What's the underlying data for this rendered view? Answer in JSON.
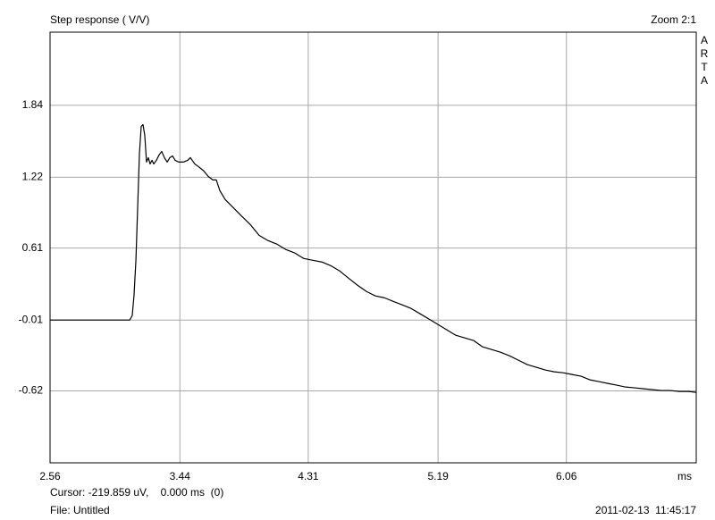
{
  "chart_data": {
    "type": "line",
    "title": "Step response ( V/V)",
    "zoom_label": "Zoom 2:1",
    "side_label": "ARTA",
    "x_label": "ms",
    "color": "#000000",
    "grid": true,
    "xlim": [
      2.56,
      6.94
    ],
    "ylim": [
      -1.24,
      2.47
    ],
    "xticks": [
      2.56,
      3.44,
      4.31,
      5.19,
      6.06
    ],
    "yticks": [
      1.84,
      1.22,
      0.61,
      -0.01,
      -0.62
    ],
    "x": [
      2.56,
      3.1,
      3.117,
      3.129,
      3.142,
      3.154,
      3.166,
      3.178,
      3.19,
      3.202,
      3.214,
      3.226,
      3.238,
      3.251,
      3.263,
      3.281,
      3.299,
      3.317,
      3.335,
      3.354,
      3.372,
      3.39,
      3.408,
      3.432,
      3.463,
      3.493,
      3.511,
      3.541,
      3.566,
      3.602,
      3.632,
      3.663,
      3.687,
      3.711,
      3.747,
      3.796,
      3.856,
      3.917,
      3.977,
      4.038,
      4.099,
      4.159,
      4.22,
      4.28,
      4.341,
      4.402,
      4.462,
      4.523,
      4.583,
      4.644,
      4.705,
      4.765,
      4.826,
      4.886,
      4.947,
      5.007,
      5.068,
      5.129,
      5.189,
      5.25,
      5.31,
      5.371,
      5.432,
      5.492,
      5.553,
      5.613,
      5.674,
      5.734,
      5.795,
      5.856,
      5.916,
      5.977,
      6.037,
      6.098,
      6.159,
      6.219,
      6.28,
      6.34,
      6.401,
      6.461,
      6.522,
      6.583,
      6.643,
      6.704,
      6.764,
      6.825,
      6.886,
      6.94
    ],
    "values": [
      -0.01,
      -0.01,
      0.028,
      0.198,
      0.505,
      0.966,
      1.428,
      1.658,
      1.674,
      1.581,
      1.351,
      1.389,
      1.335,
      1.366,
      1.335,
      1.366,
      1.412,
      1.443,
      1.389,
      1.351,
      1.389,
      1.404,
      1.366,
      1.351,
      1.351,
      1.366,
      1.389,
      1.335,
      1.312,
      1.274,
      1.228,
      1.197,
      1.197,
      1.105,
      1.028,
      0.966,
      0.889,
      0.813,
      0.72,
      0.674,
      0.643,
      0.597,
      0.567,
      0.52,
      0.505,
      0.49,
      0.459,
      0.413,
      0.351,
      0.29,
      0.236,
      0.198,
      0.182,
      0.151,
      0.121,
      0.09,
      0.044,
      -0.002,
      -0.048,
      -0.095,
      -0.141,
      -0.164,
      -0.187,
      -0.241,
      -0.264,
      -0.287,
      -0.318,
      -0.356,
      -0.394,
      -0.417,
      -0.44,
      -0.456,
      -0.464,
      -0.479,
      -0.494,
      -0.525,
      -0.54,
      -0.556,
      -0.571,
      -0.587,
      -0.594,
      -0.602,
      -0.61,
      -0.617,
      -0.617,
      -0.625,
      -0.625,
      -0.633
    ]
  },
  "status": {
    "cursor": "Cursor: -219.859 uV,    0.000 ms  (0)",
    "file": "File: Untitled",
    "timestamp": "2011-02-13  11:45:17"
  }
}
